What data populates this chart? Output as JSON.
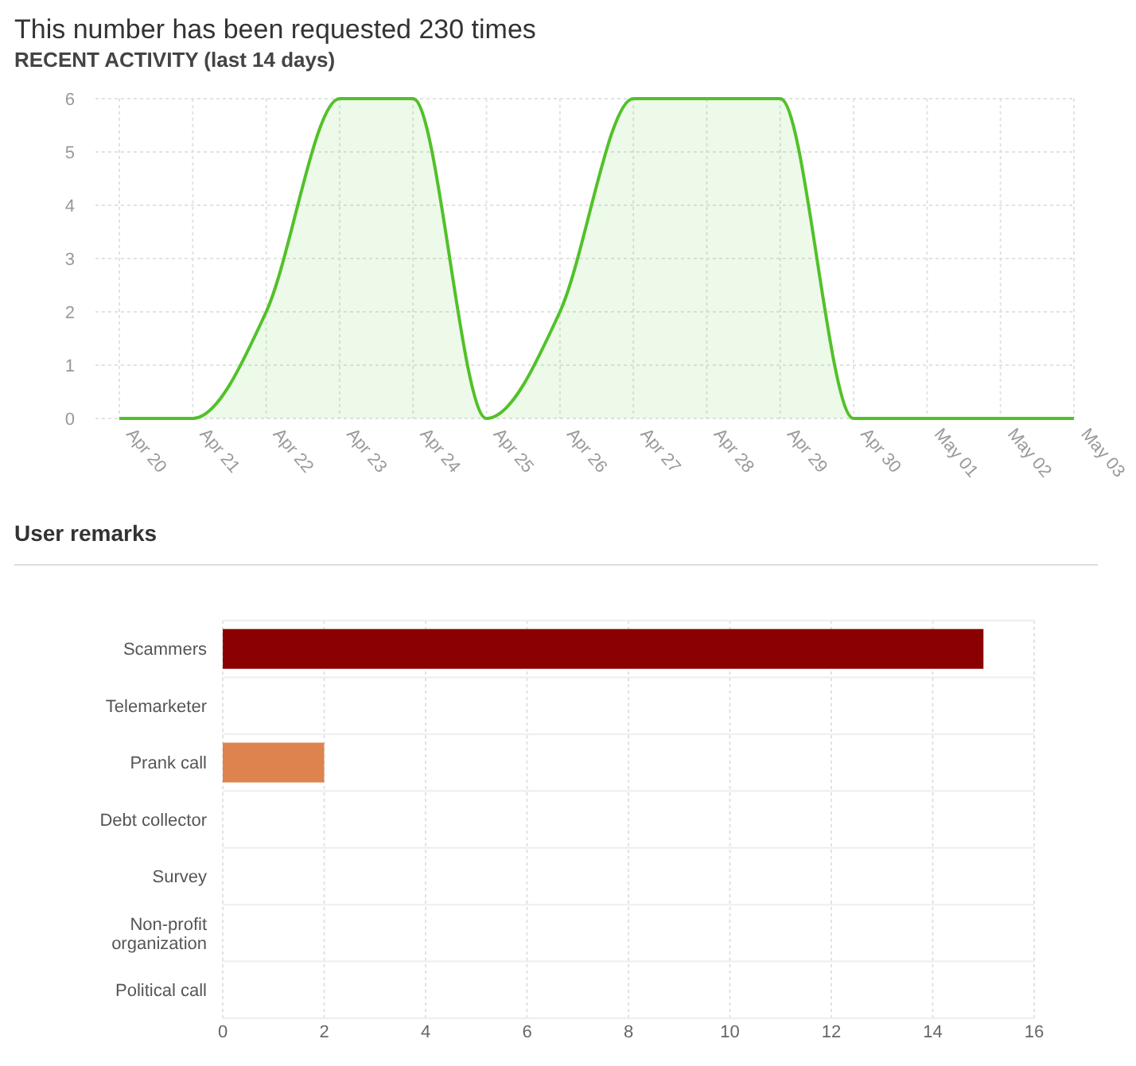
{
  "chart_data": [
    {
      "type": "area",
      "title": "This number has been requested 230 times",
      "subtitle": "RECENT ACTIVITY (last 14 days)",
      "categories": [
        "Apr 20",
        "Apr 21",
        "Apr 22",
        "Apr 23",
        "Apr 24",
        "Apr 25",
        "Apr 26",
        "Apr 27",
        "Apr 28",
        "Apr 29",
        "Apr 30",
        "May 01",
        "May 02",
        "May 03"
      ],
      "values": [
        0,
        0,
        2,
        6,
        6,
        0,
        2,
        6,
        6,
        6,
        0,
        0,
        0,
        0
      ],
      "color": "#52c12a",
      "ylim": [
        0,
        6
      ],
      "yticks": [
        0,
        1,
        2,
        3,
        4,
        5,
        6
      ],
      "grid": true
    },
    {
      "type": "bar",
      "orientation": "horizontal",
      "title": "User remarks",
      "categories": [
        "Scammers",
        "Telemarketer",
        "Prank call",
        "Debt collector",
        "Survey",
        "Non-profit organization",
        "Political call"
      ],
      "values": [
        15,
        0,
        2,
        0,
        0,
        0,
        0
      ],
      "colors": [
        "#8b0000",
        null,
        "#dc834e",
        null,
        null,
        null,
        null
      ],
      "xlim": [
        0,
        16
      ],
      "xticks": [
        0,
        2,
        4,
        6,
        8,
        10,
        12,
        14,
        16
      ],
      "grid": true
    }
  ]
}
